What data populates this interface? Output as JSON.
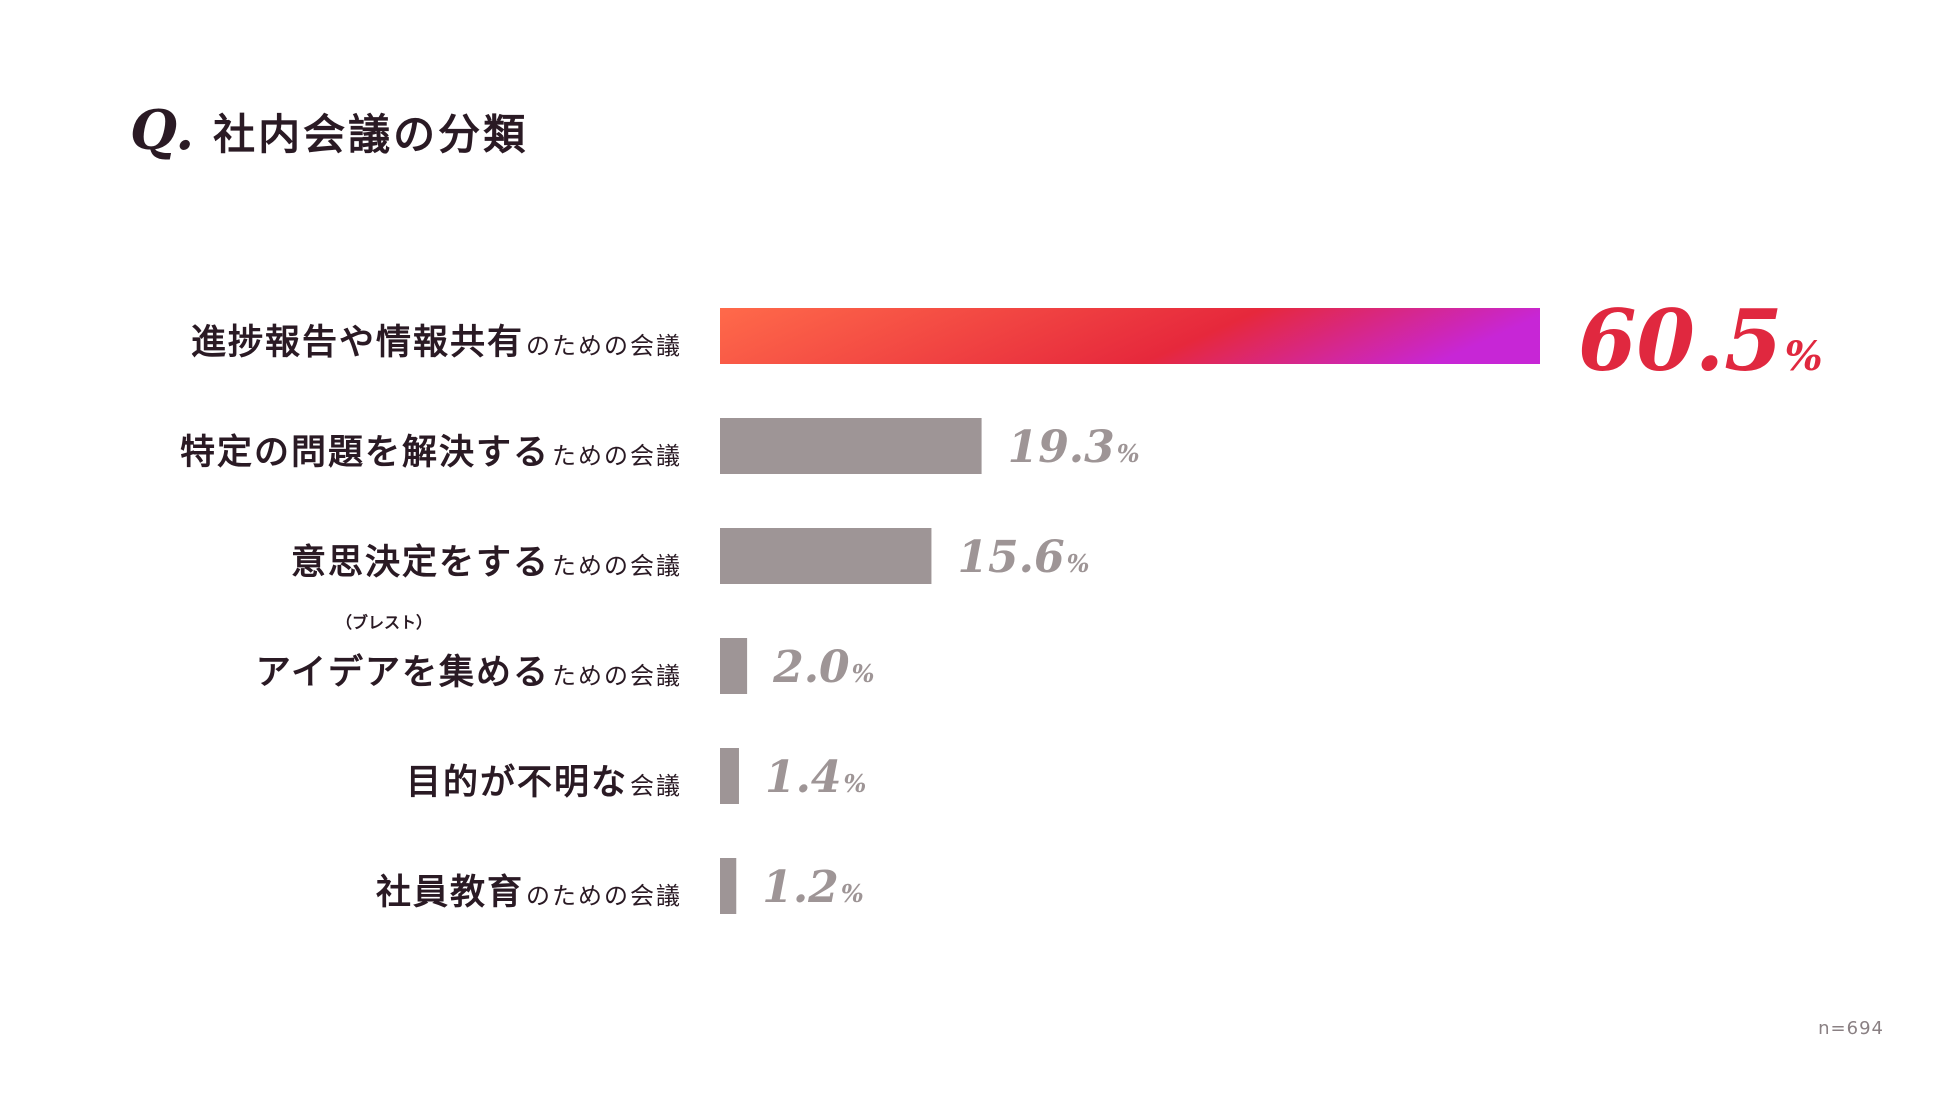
{
  "title": {
    "prefix": "Q.",
    "text": "社内会議の分類"
  },
  "sample_size": "n=694",
  "colors": {
    "highlight_gradient": [
      "#ff6a4a",
      "#e6283c",
      "#c726d6"
    ],
    "highlight_text": "#e0283f",
    "bar_gray": "#9e9596",
    "value_gray": "#9e9596",
    "text_dark": "#2a1a24"
  },
  "chart_data": {
    "type": "bar",
    "orientation": "horizontal",
    "unit": "%",
    "categories": [
      {
        "main": "進捗報告や情報共有",
        "suffix": "のための会議",
        "ruby": ""
      },
      {
        "main": "特定の問題を解決する",
        "suffix": "ための会議",
        "ruby": ""
      },
      {
        "main": "意思決定をする",
        "suffix": "ための会議",
        "ruby": ""
      },
      {
        "main": "アイデアを集める",
        "suffix": "ための会議",
        "ruby": "（ブレスト）"
      },
      {
        "main": "目的が不明な",
        "suffix": "会議",
        "ruby": ""
      },
      {
        "main": "社員教育",
        "suffix": "のための会議",
        "ruby": ""
      }
    ],
    "values": [
      60.5,
      19.3,
      15.6,
      2.0,
      1.4,
      1.2
    ],
    "value_labels": [
      "60.5",
      "19.3",
      "15.6",
      "2.0",
      "1.4",
      "1.2"
    ],
    "highlight_index": 0,
    "xlim": [
      0,
      60.5
    ]
  }
}
